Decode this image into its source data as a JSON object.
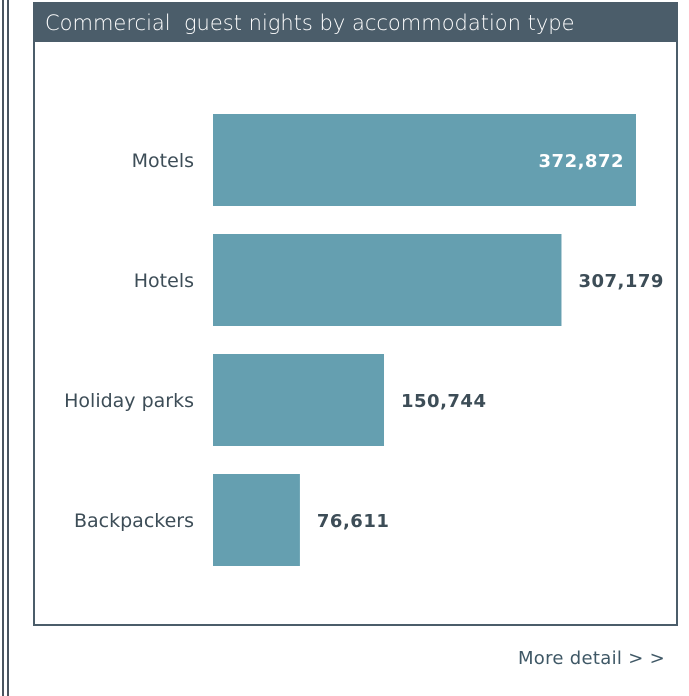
{
  "header": {
    "title": "Commercial  guest nights by accommodation type"
  },
  "footer": {
    "more_detail_label": "More detail > >"
  },
  "colors": {
    "bar": "#659fb0",
    "header_bg": "#4b5d6a",
    "label_inside": "#ffffff",
    "label_outside": "#3d4d57",
    "category_text": "#3d4d57"
  },
  "chart_data": {
    "type": "bar",
    "orientation": "horizontal",
    "title": "Commercial  guest nights by accommodation type",
    "categories": [
      "Motels",
      "Hotels",
      "Holiday parks",
      "Backpackers"
    ],
    "values": [
      372872,
      307179,
      150744,
      76611
    ],
    "value_labels": [
      "372,872",
      "307,179",
      "150,744",
      "76,611"
    ],
    "xlabel": "",
    "ylabel": "",
    "xlim": [
      0,
      372872
    ],
    "grid": false,
    "legend": "none"
  }
}
